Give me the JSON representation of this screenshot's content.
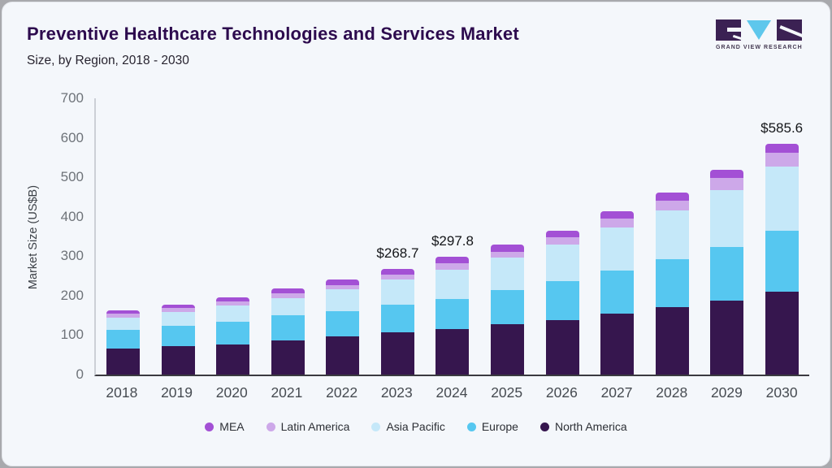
{
  "header": {
    "title": "Preventive Healthcare Technologies and Services Market",
    "subtitle": "Size, by Region, 2018 - 2030"
  },
  "logo": {
    "brand": "GRAND VIEW RESEARCH",
    "colors": {
      "dark": "#3b2153",
      "cyan": "#5ec7ec"
    }
  },
  "chart_data": {
    "type": "bar",
    "stacked": true,
    "title": "Preventive Healthcare Technologies and Services Market Size, by Region, 2018 - 2030",
    "xlabel": "",
    "ylabel": "Market Size (US$B)",
    "ylim": [
      0,
      700
    ],
    "yticks": [
      0,
      100,
      200,
      300,
      400,
      500,
      600,
      700
    ],
    "grid": false,
    "legend_position": "bottom",
    "categories": [
      "2018",
      "2019",
      "2020",
      "2021",
      "2022",
      "2023",
      "2024",
      "2025",
      "2026",
      "2027",
      "2028",
      "2029",
      "2030"
    ],
    "series": [
      {
        "name": "North America",
        "color": "#36164e",
        "values": [
          66,
          72,
          77,
          87.5,
          96.5,
          108,
          115,
          127,
          139,
          153.5,
          170,
          187.5,
          211
        ]
      },
      {
        "name": "Europe",
        "color": "#56c7f0",
        "values": [
          47,
          52,
          57,
          62,
          65,
          68.5,
          77.5,
          87,
          98.5,
          110,
          122,
          135,
          153
        ]
      },
      {
        "name": "Asia Pacific",
        "color": "#c5e8f9",
        "values": [
          32,
          35,
          41,
          44.5,
          55,
          63.5,
          73.5,
          82.5,
          92.5,
          109,
          123.5,
          145.5,
          164
        ]
      },
      {
        "name": "Latin America",
        "color": "#cda8e9",
        "values": [
          8.5,
          9.5,
          9.5,
          11,
          11,
          13.2,
          15.3,
          15.5,
          18,
          22,
          25.5,
          29.5,
          33.5
        ]
      },
      {
        "name": "MEA",
        "color": "#a350d5",
        "values": [
          8.5,
          9.5,
          11,
          12.5,
          14,
          15.5,
          16.5,
          17,
          17.5,
          18.5,
          20,
          22,
          24.1
        ]
      }
    ],
    "totals": [
      162,
      178,
      195.5,
      217.5,
      241.5,
      268.7,
      297.8,
      329,
      365.5,
      413,
      461,
      519.5,
      585.6
    ],
    "annotations": [
      {
        "category": "2023",
        "text": "$268.7"
      },
      {
        "category": "2024",
        "text": "$297.8"
      },
      {
        "category": "2030",
        "text": "$585.6"
      }
    ]
  }
}
